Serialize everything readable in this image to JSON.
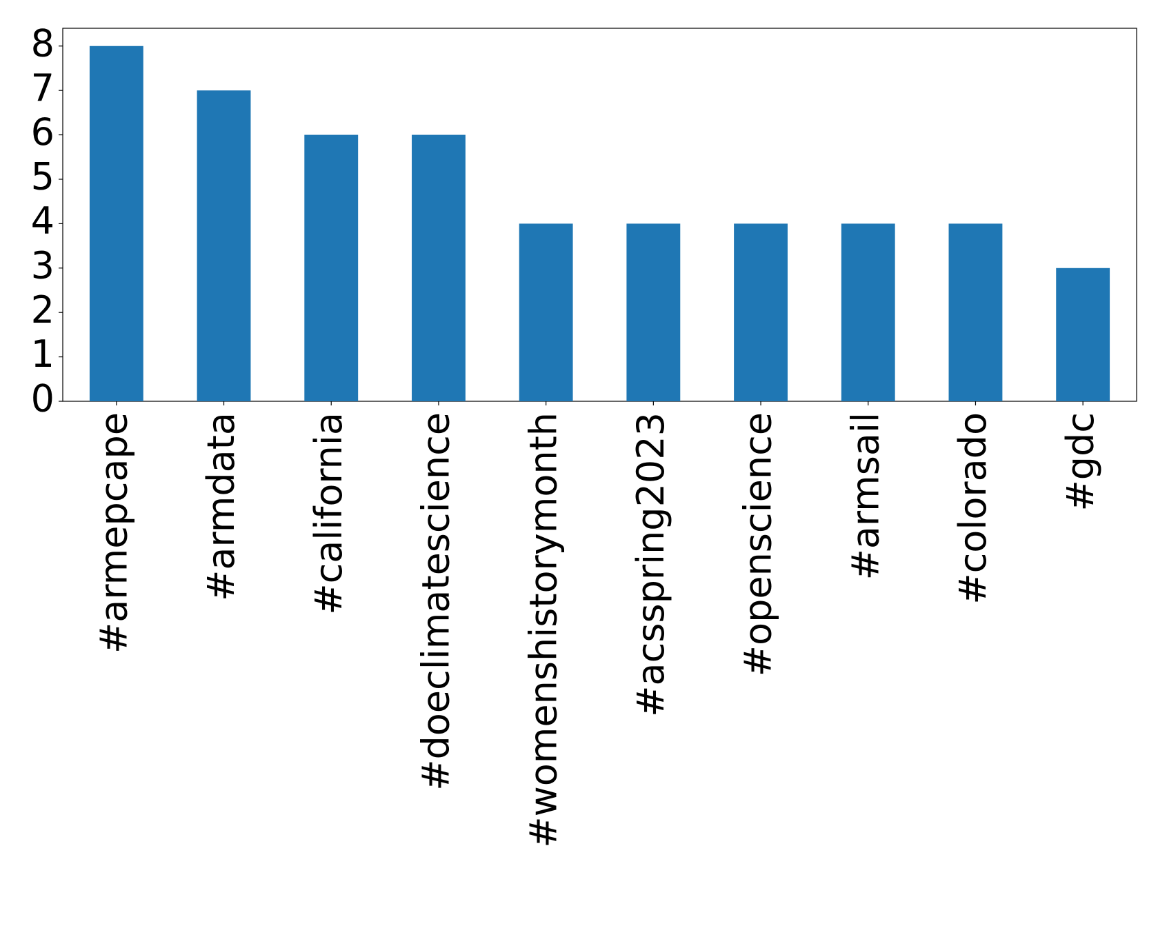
{
  "chart_data": {
    "type": "bar",
    "categories": [
      "#armepcape",
      "#armdata",
      "#california",
      "#doeclimatescience",
      "#womenshistorymonth",
      "#acsspring2023",
      "#openscience",
      "#armsail",
      "#colorado",
      "#gdc"
    ],
    "values": [
      8,
      7,
      6,
      6,
      4,
      4,
      4,
      4,
      4,
      3
    ],
    "color": "#1f77b4",
    "ylim": [
      0,
      8.4
    ],
    "yticks": [
      0,
      1,
      2,
      3,
      4,
      5,
      6,
      7,
      8
    ],
    "grid": false
  }
}
